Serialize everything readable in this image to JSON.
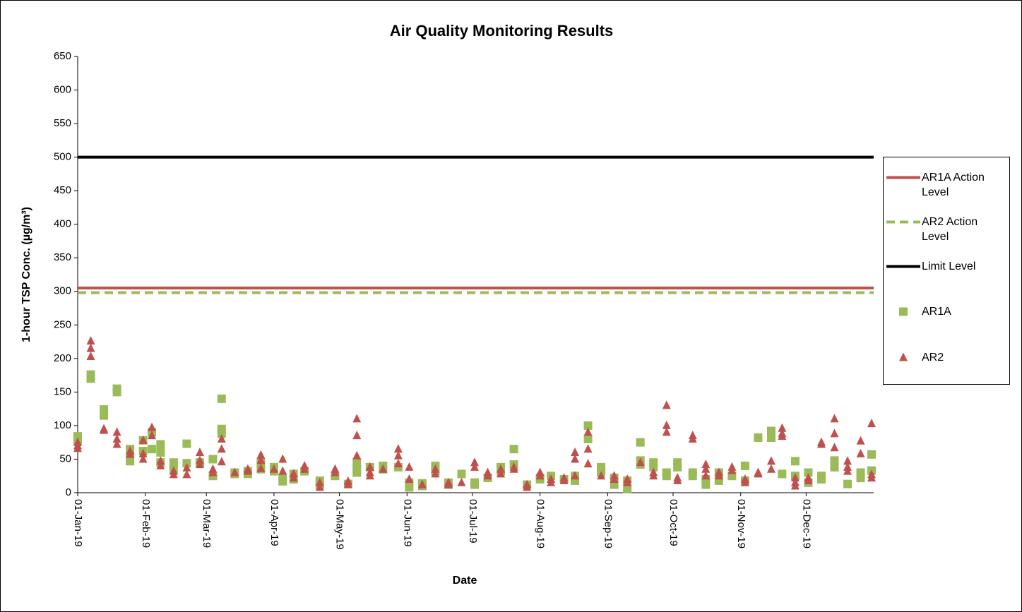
{
  "chart_data": {
    "type": "scatter",
    "title": "Air Quality Monitoring Results",
    "x_label": "Date",
    "y_label": "1-hour TSP Conc. (µg/m³)",
    "ylim": [
      0,
      650
    ],
    "yticks": [
      0,
      50,
      100,
      150,
      200,
      250,
      300,
      350,
      400,
      450,
      500,
      550,
      600,
      650
    ],
    "xlim": [
      "2019-01-01",
      "2019-12-31"
    ],
    "xticks": [
      {
        "value": "2019-01-01",
        "label": "01-Jan-19"
      },
      {
        "value": "2019-02-01",
        "label": "01-Feb-19"
      },
      {
        "value": "2019-03-01",
        "label": "01-Mar-19"
      },
      {
        "value": "2019-04-01",
        "label": "01-Apr-19"
      },
      {
        "value": "2019-05-01",
        "label": "01-May-19"
      },
      {
        "value": "2019-06-01",
        "label": "01-Jun-19"
      },
      {
        "value": "2019-07-01",
        "label": "01-Jul-19"
      },
      {
        "value": "2019-08-01",
        "label": "01-Aug-19"
      },
      {
        "value": "2019-09-01",
        "label": "01-Sep-19"
      },
      {
        "value": "2019-10-01",
        "label": "01-Oct-19"
      },
      {
        "value": "2019-11-01",
        "label": "01-Nov-19"
      },
      {
        "value": "2019-12-01",
        "label": "01-Dec-19"
      }
    ],
    "grid": false,
    "legend": "right",
    "series": [
      {
        "name": "AR1A Action Level",
        "color": "#c0504d",
        "style": "solid",
        "level": 305
      },
      {
        "name": "AR2 Action Level",
        "color": "#9bbb59",
        "style": "dashed",
        "level": 298
      },
      {
        "name": "Limit Level",
        "color": "#000000",
        "style": "solid",
        "level": 500
      },
      {
        "name": "AR1A",
        "color": "#9bbb59",
        "marker": "square",
        "x": [
          "2019-01-01",
          "2019-01-01",
          "2019-01-07",
          "2019-01-07",
          "2019-01-13",
          "2019-01-13",
          "2019-01-19",
          "2019-01-19",
          "2019-01-25",
          "2019-01-25",
          "2019-01-25",
          "2019-01-31",
          "2019-01-31",
          "2019-02-04",
          "2019-02-04",
          "2019-02-08",
          "2019-02-08",
          "2019-02-08",
          "2019-02-14",
          "2019-02-14",
          "2019-02-20",
          "2019-02-20",
          "2019-02-26",
          "2019-03-04",
          "2019-03-04",
          "2019-03-08",
          "2019-03-08",
          "2019-03-08",
          "2019-03-14",
          "2019-03-14",
          "2019-03-20",
          "2019-03-20",
          "2019-03-26",
          "2019-03-26",
          "2019-04-01",
          "2019-04-01",
          "2019-04-05",
          "2019-04-05",
          "2019-04-10",
          "2019-04-10",
          "2019-04-15",
          "2019-04-22",
          "2019-04-22",
          "2019-04-29",
          "2019-05-05",
          "2019-05-09",
          "2019-05-09",
          "2019-05-09",
          "2019-05-15",
          "2019-05-21",
          "2019-05-21",
          "2019-05-28",
          "2019-06-02",
          "2019-06-02",
          "2019-06-08",
          "2019-06-08",
          "2019-06-14",
          "2019-06-14",
          "2019-06-20",
          "2019-06-20",
          "2019-06-26",
          "2019-07-02",
          "2019-07-02",
          "2019-07-08",
          "2019-07-14",
          "2019-07-14",
          "2019-07-20",
          "2019-07-20",
          "2019-07-26",
          "2019-08-01",
          "2019-08-01",
          "2019-08-06",
          "2019-08-12",
          "2019-08-17",
          "2019-08-17",
          "2019-08-23",
          "2019-08-23",
          "2019-08-29",
          "2019-08-29",
          "2019-09-04",
          "2019-09-04",
          "2019-09-10",
          "2019-09-10",
          "2019-09-16",
          "2019-09-16",
          "2019-09-16",
          "2019-09-22",
          "2019-09-22",
          "2019-09-28",
          "2019-09-28",
          "2019-10-03",
          "2019-10-03",
          "2019-10-10",
          "2019-10-10",
          "2019-10-16",
          "2019-10-16",
          "2019-10-22",
          "2019-10-22",
          "2019-10-28",
          "2019-11-03",
          "2019-11-03",
          "2019-11-09",
          "2019-11-15",
          "2019-11-15",
          "2019-11-20",
          "2019-11-26",
          "2019-11-26",
          "2019-12-02",
          "2019-12-02",
          "2019-12-08",
          "2019-12-08",
          "2019-12-14",
          "2019-12-14",
          "2019-12-20",
          "2019-12-26",
          "2019-12-26",
          "2019-12-31",
          "2019-12-31"
        ],
        "values": [
          84,
          78,
          176,
          170,
          124,
          115,
          155,
          150,
          65,
          55,
          47,
          78,
          62,
          90,
          65,
          72,
          60,
          45,
          45,
          35,
          73,
          44,
          45,
          50,
          25,
          140,
          95,
          88,
          30,
          28,
          32,
          28,
          45,
          35,
          38,
          32,
          22,
          17,
          28,
          20,
          32,
          18,
          12,
          25,
          13,
          45,
          35,
          30,
          38,
          40,
          35,
          38,
          15,
          8,
          14,
          10,
          40,
          32,
          15,
          12,
          28,
          15,
          12,
          22,
          38,
          32,
          65,
          42,
          12,
          22,
          20,
          25,
          20,
          25,
          18,
          100,
          80,
          38,
          30,
          22,
          12,
          18,
          6,
          75,
          48,
          42,
          45,
          38,
          30,
          25,
          45,
          38,
          30,
          25,
          20,
          12,
          30,
          18,
          25,
          40,
          18,
          82,
          92,
          82,
          28,
          47,
          25,
          30,
          15,
          25,
          20,
          48,
          38,
          13,
          30,
          22,
          57,
          33
        ]
      },
      {
        "name": "AR2",
        "color": "#c0504d",
        "marker": "triangle",
        "x": [
          "2019-01-01",
          "2019-01-01",
          "2019-01-01",
          "2019-01-07",
          "2019-01-07",
          "2019-01-07",
          "2019-01-13",
          "2019-01-13",
          "2019-01-19",
          "2019-01-19",
          "2019-01-19",
          "2019-01-25",
          "2019-01-25",
          "2019-01-31",
          "2019-01-31",
          "2019-01-31",
          "2019-02-04",
          "2019-02-04",
          "2019-02-08",
          "2019-02-08",
          "2019-02-14",
          "2019-02-14",
          "2019-02-20",
          "2019-02-20",
          "2019-02-26",
          "2019-02-26",
          "2019-02-26",
          "2019-03-04",
          "2019-03-04",
          "2019-03-08",
          "2019-03-08",
          "2019-03-08",
          "2019-03-14",
          "2019-03-20",
          "2019-03-20",
          "2019-03-26",
          "2019-03-26",
          "2019-03-26",
          "2019-04-01",
          "2019-04-05",
          "2019-04-05",
          "2019-04-10",
          "2019-04-10",
          "2019-04-15",
          "2019-04-15",
          "2019-04-22",
          "2019-04-22",
          "2019-04-29",
          "2019-04-29",
          "2019-05-05",
          "2019-05-05",
          "2019-05-09",
          "2019-05-09",
          "2019-05-09",
          "2019-05-15",
          "2019-05-15",
          "2019-05-15",
          "2019-05-21",
          "2019-05-28",
          "2019-05-28",
          "2019-05-28",
          "2019-06-02",
          "2019-06-02",
          "2019-06-08",
          "2019-06-14",
          "2019-06-14",
          "2019-06-20",
          "2019-06-20",
          "2019-06-26",
          "2019-07-02",
          "2019-07-02",
          "2019-07-08",
          "2019-07-08",
          "2019-07-14",
          "2019-07-14",
          "2019-07-20",
          "2019-07-20",
          "2019-07-26",
          "2019-07-26",
          "2019-08-01",
          "2019-08-01",
          "2019-08-06",
          "2019-08-06",
          "2019-08-12",
          "2019-08-12",
          "2019-08-17",
          "2019-08-17",
          "2019-08-17",
          "2019-08-23",
          "2019-08-23",
          "2019-08-23",
          "2019-08-29",
          "2019-09-04",
          "2019-09-04",
          "2019-09-10",
          "2019-09-10",
          "2019-09-16",
          "2019-09-22",
          "2019-09-22",
          "2019-09-28",
          "2019-09-28",
          "2019-09-28",
          "2019-10-03",
          "2019-10-03",
          "2019-10-10",
          "2019-10-10",
          "2019-10-16",
          "2019-10-16",
          "2019-10-16",
          "2019-10-22",
          "2019-10-22",
          "2019-10-28",
          "2019-10-28",
          "2019-11-03",
          "2019-11-03",
          "2019-11-09",
          "2019-11-09",
          "2019-11-15",
          "2019-11-15",
          "2019-11-20",
          "2019-11-20",
          "2019-11-20",
          "2019-11-26",
          "2019-11-26",
          "2019-11-26",
          "2019-12-02",
          "2019-12-02",
          "2019-12-08",
          "2019-12-08",
          "2019-12-14",
          "2019-12-14",
          "2019-12-14",
          "2019-12-20",
          "2019-12-20",
          "2019-12-20",
          "2019-12-26",
          "2019-12-26",
          "2019-12-31",
          "2019-12-31",
          "2019-12-31"
        ],
        "values": [
          75,
          70,
          66,
          226,
          215,
          203,
          95,
          93,
          90,
          80,
          72,
          62,
          57,
          78,
          58,
          50,
          97,
          85,
          47,
          40,
          32,
          27,
          37,
          27,
          60,
          48,
          42,
          35,
          30,
          80,
          65,
          46,
          30,
          35,
          32,
          56,
          48,
          36,
          35,
          50,
          32,
          28,
          22,
          40,
          35,
          15,
          8,
          35,
          30,
          17,
          12,
          110,
          85,
          55,
          38,
          30,
          25,
          35,
          65,
          55,
          43,
          38,
          20,
          12,
          35,
          28,
          15,
          12,
          15,
          45,
          38,
          30,
          25,
          35,
          28,
          38,
          35,
          12,
          8,
          30,
          25,
          20,
          15,
          22,
          18,
          60,
          50,
          25,
          90,
          65,
          43,
          25,
          25,
          20,
          20,
          15,
          45,
          30,
          25,
          130,
          100,
          90,
          22,
          18,
          85,
          80,
          42,
          35,
          25,
          30,
          25,
          38,
          33,
          20,
          15,
          30,
          28,
          47,
          35,
          96,
          88,
          84,
          22,
          15,
          10,
          22,
          18,
          75,
          72,
          110,
          88,
          67,
          47,
          38,
          32,
          77,
          58,
          103,
          27,
          22
        ]
      }
    ]
  }
}
